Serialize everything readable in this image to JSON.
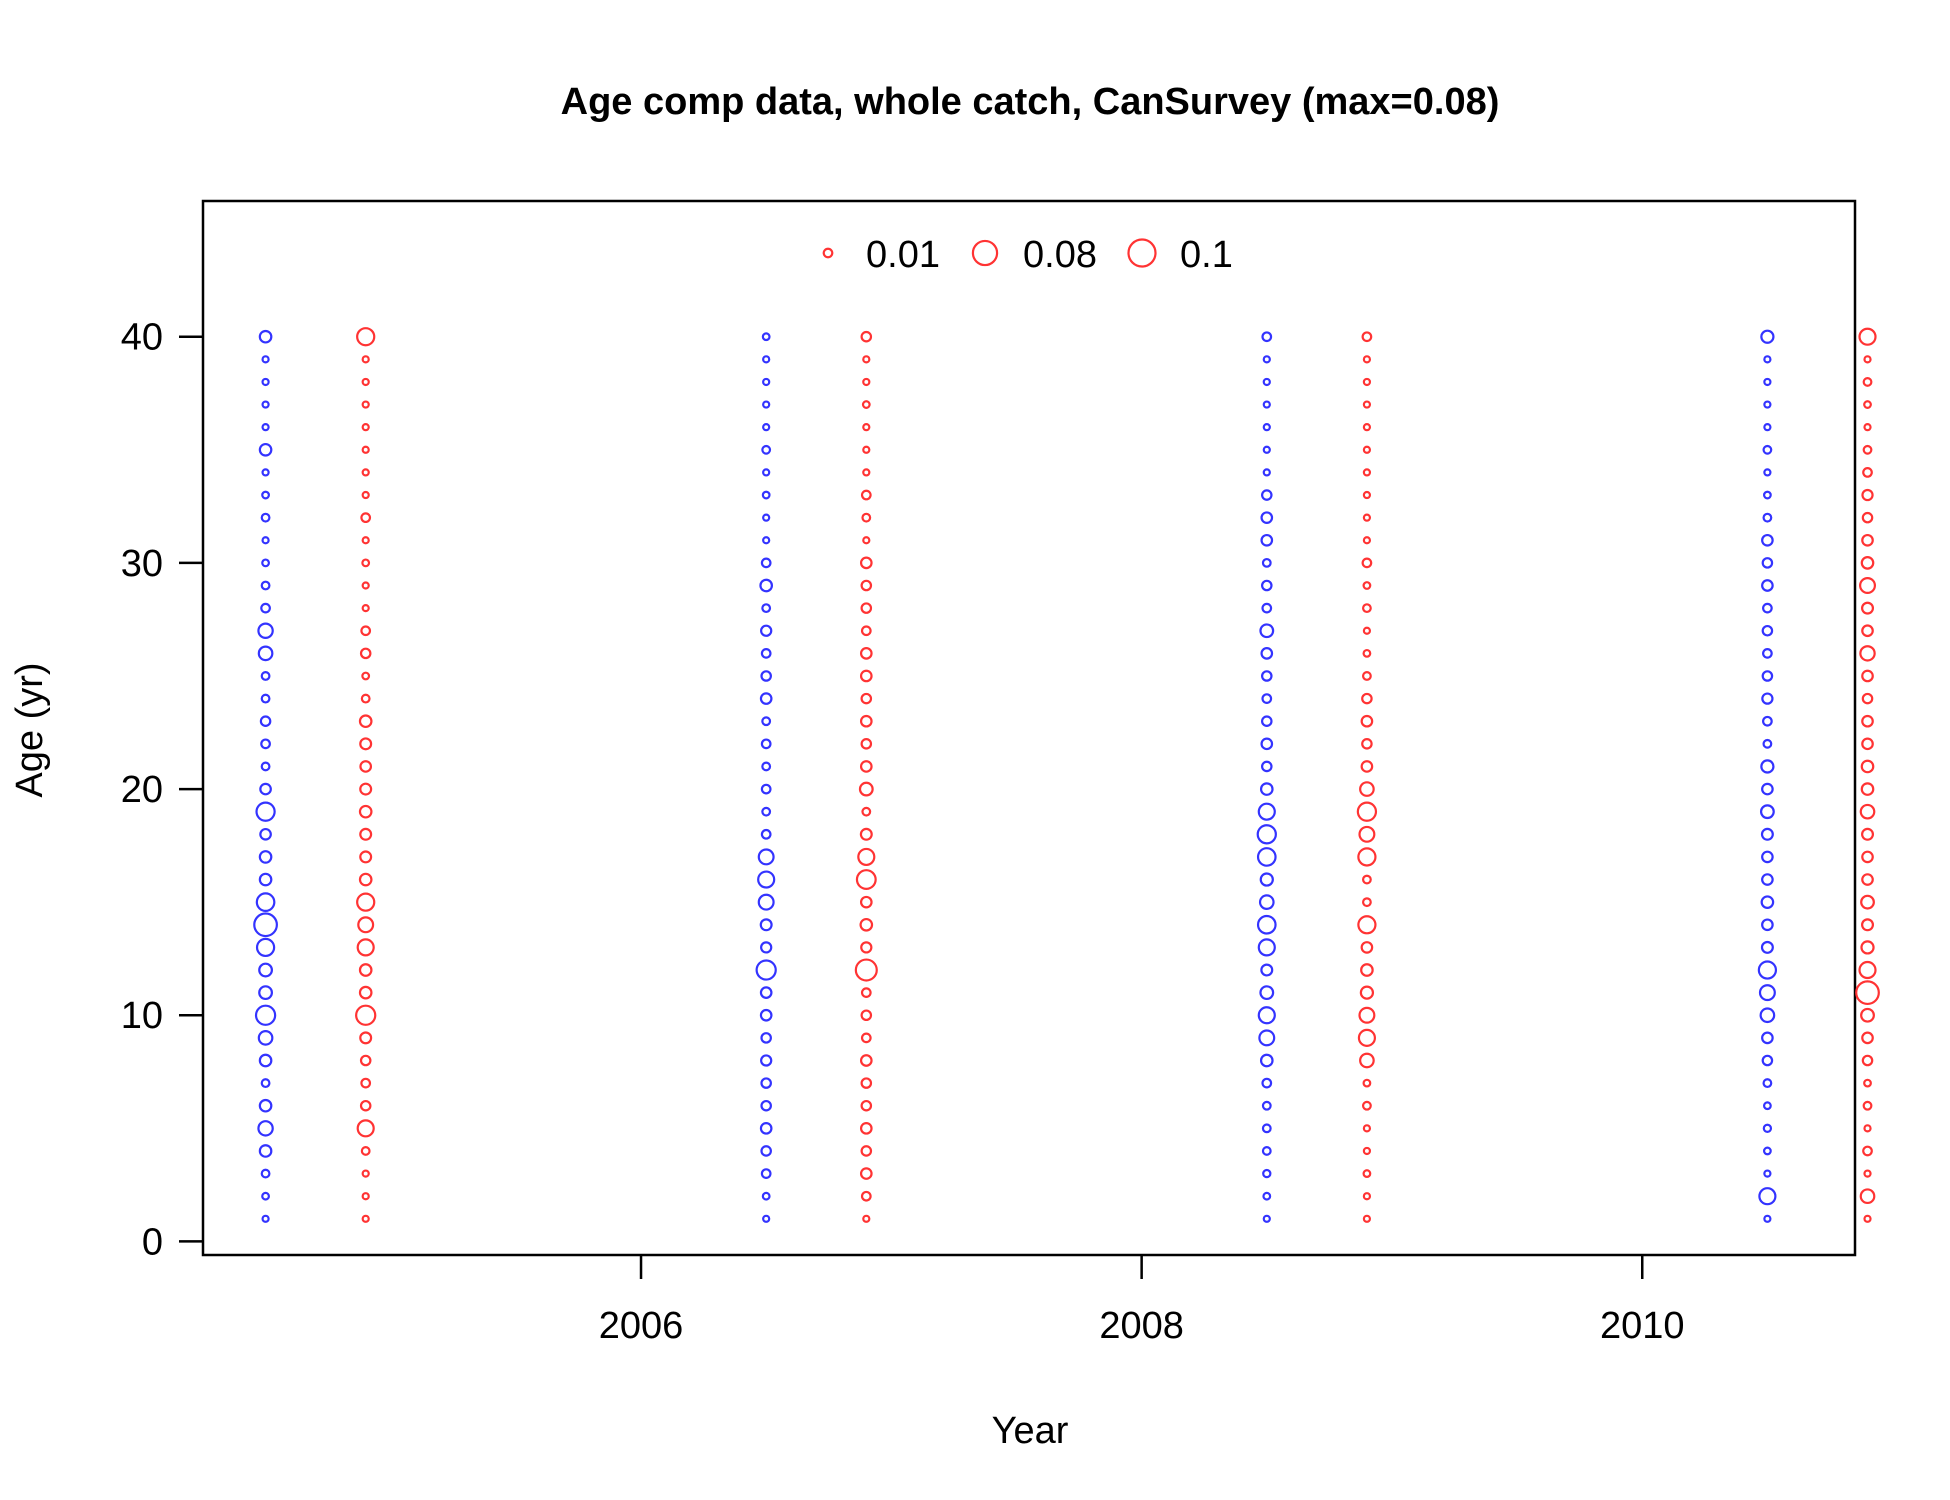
{
  "chart_data": {
    "type": "scatter",
    "title": "Age comp data, whole catch, CanSurvey (max=0.08)",
    "xlabel": "Year",
    "ylabel": "Age (yr)",
    "xlim": [
      2004.25,
      2010.85
    ],
    "ylim": [
      -0.6,
      46
    ],
    "x_ticks": [
      2006,
      2008,
      2010
    ],
    "y_ticks": [
      0,
      10,
      20,
      30,
      40
    ],
    "grid": false,
    "legend": {
      "placement": "top",
      "entries": [
        "0.01",
        "0.08",
        "0.1"
      ],
      "values": [
        0.01,
        0.08,
        0.1
      ],
      "color": "#ff3333"
    },
    "max_proportion": 0.08,
    "series": [
      {
        "color": "#3333ff",
        "offset": -0.2,
        "x": [
          2004.7,
          2006.7,
          2008.7,
          2010.7
        ],
        "ages": [
          1,
          2,
          3,
          4,
          5,
          6,
          7,
          8,
          9,
          10,
          11,
          12,
          13,
          14,
          15,
          16,
          17,
          18,
          19,
          20,
          21,
          22,
          23,
          24,
          25,
          26,
          27,
          28,
          29,
          30,
          31,
          32,
          33,
          34,
          35,
          36,
          37,
          38,
          39,
          40
        ],
        "values": [
          [
            0.005,
            0.006,
            0.008,
            0.018,
            0.028,
            0.018,
            0.008,
            0.018,
            0.025,
            0.05,
            0.022,
            0.022,
            0.04,
            0.07,
            0.042,
            0.018,
            0.018,
            0.015,
            0.045,
            0.015,
            0.008,
            0.01,
            0.012,
            0.008,
            0.008,
            0.025,
            0.028,
            0.01,
            0.008,
            0.006,
            0.005,
            0.008,
            0.006,
            0.005,
            0.018,
            0.005,
            0.005,
            0.005,
            0.005,
            0.018
          ],
          [
            0.005,
            0.006,
            0.01,
            0.012,
            0.015,
            0.012,
            0.012,
            0.014,
            0.012,
            0.015,
            0.015,
            0.05,
            0.014,
            0.016,
            0.03,
            0.035,
            0.03,
            0.01,
            0.008,
            0.01,
            0.008,
            0.01,
            0.008,
            0.015,
            0.012,
            0.01,
            0.014,
            0.008,
            0.018,
            0.01,
            0.005,
            0.005,
            0.006,
            0.005,
            0.008,
            0.005,
            0.005,
            0.005,
            0.005,
            0.006
          ],
          [
            0.005,
            0.006,
            0.007,
            0.008,
            0.008,
            0.008,
            0.01,
            0.018,
            0.03,
            0.035,
            0.022,
            0.016,
            0.035,
            0.042,
            0.025,
            0.02,
            0.042,
            0.045,
            0.035,
            0.018,
            0.012,
            0.015,
            0.012,
            0.01,
            0.012,
            0.015,
            0.022,
            0.01,
            0.012,
            0.008,
            0.015,
            0.015,
            0.012,
            0.005,
            0.005,
            0.005,
            0.005,
            0.005,
            0.005,
            0.01
          ],
          [
            0.005,
            0.035,
            0.005,
            0.006,
            0.007,
            0.006,
            0.008,
            0.012,
            0.015,
            0.025,
            0.03,
            0.04,
            0.016,
            0.015,
            0.018,
            0.015,
            0.015,
            0.016,
            0.022,
            0.015,
            0.02,
            0.008,
            0.01,
            0.014,
            0.012,
            0.01,
            0.012,
            0.01,
            0.015,
            0.012,
            0.015,
            0.008,
            0.006,
            0.005,
            0.008,
            0.005,
            0.005,
            0.005,
            0.005,
            0.02
          ]
        ]
      },
      {
        "color": "#ff3333",
        "offset": 0.2,
        "x": [
          2004.7,
          2006.7,
          2008.7,
          2010.7
        ],
        "ages": [
          1,
          2,
          3,
          4,
          5,
          6,
          7,
          8,
          9,
          10,
          11,
          12,
          13,
          14,
          15,
          16,
          17,
          18,
          19,
          20,
          21,
          22,
          23,
          24,
          25,
          26,
          27,
          28,
          29,
          30,
          31,
          32,
          33,
          34,
          35,
          36,
          37,
          38,
          39,
          40
        ],
        "values": [
          [
            0.005,
            0.005,
            0.005,
            0.008,
            0.035,
            0.012,
            0.01,
            0.012,
            0.016,
            0.05,
            0.018,
            0.018,
            0.035,
            0.03,
            0.04,
            0.018,
            0.016,
            0.016,
            0.018,
            0.016,
            0.015,
            0.016,
            0.018,
            0.008,
            0.006,
            0.012,
            0.01,
            0.005,
            0.005,
            0.006,
            0.005,
            0.01,
            0.005,
            0.005,
            0.005,
            0.005,
            0.005,
            0.005,
            0.005,
            0.04
          ],
          [
            0.005,
            0.01,
            0.015,
            0.012,
            0.015,
            0.012,
            0.012,
            0.015,
            0.01,
            0.012,
            0.01,
            0.06,
            0.014,
            0.018,
            0.015,
            0.048,
            0.035,
            0.016,
            0.008,
            0.022,
            0.015,
            0.012,
            0.015,
            0.012,
            0.015,
            0.015,
            0.01,
            0.012,
            0.012,
            0.015,
            0.005,
            0.008,
            0.01,
            0.005,
            0.005,
            0.005,
            0.006,
            0.005,
            0.005,
            0.012
          ],
          [
            0.005,
            0.005,
            0.006,
            0.005,
            0.005,
            0.008,
            0.006,
            0.025,
            0.035,
            0.03,
            0.02,
            0.018,
            0.015,
            0.04,
            0.008,
            0.008,
            0.04,
            0.03,
            0.045,
            0.025,
            0.015,
            0.012,
            0.015,
            0.012,
            0.008,
            0.006,
            0.005,
            0.008,
            0.006,
            0.01,
            0.005,
            0.005,
            0.005,
            0.005,
            0.005,
            0.005,
            0.005,
            0.005,
            0.005,
            0.01
          ],
          [
            0.005,
            0.025,
            0.005,
            0.01,
            0.005,
            0.008,
            0.006,
            0.012,
            0.015,
            0.022,
            0.07,
            0.035,
            0.02,
            0.016,
            0.022,
            0.015,
            0.015,
            0.016,
            0.025,
            0.018,
            0.018,
            0.015,
            0.015,
            0.012,
            0.015,
            0.028,
            0.015,
            0.016,
            0.03,
            0.018,
            0.015,
            0.012,
            0.014,
            0.01,
            0.008,
            0.005,
            0.006,
            0.008,
            0.005,
            0.035
          ]
        ]
      }
    ]
  }
}
